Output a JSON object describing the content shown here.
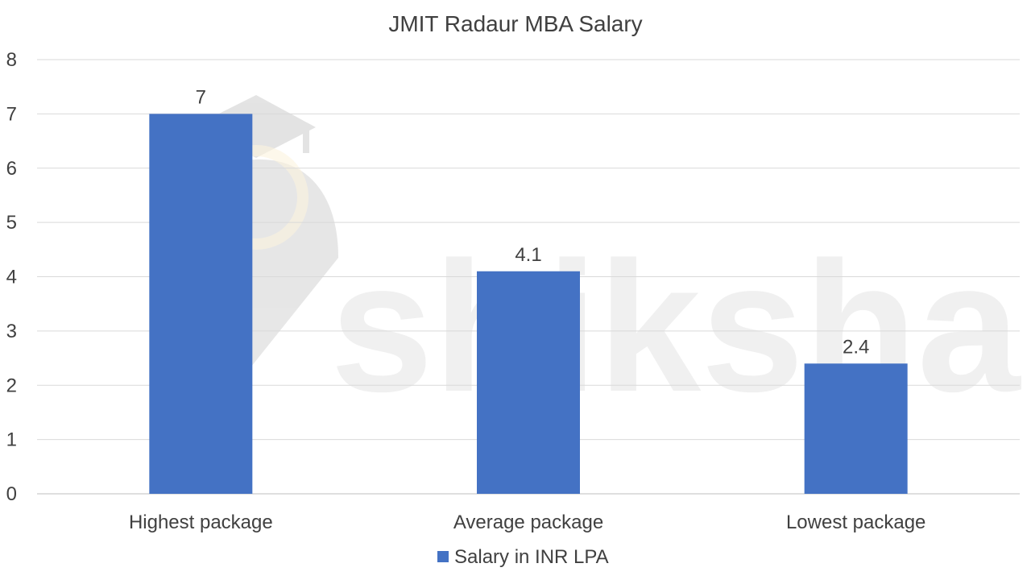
{
  "chart_data": {
    "type": "bar",
    "title": "JMIT Radaur MBA Salary",
    "categories": [
      "Highest package",
      "Average package",
      "Lowest package"
    ],
    "series": [
      {
        "name": "Salary in INR LPA",
        "values": [
          7,
          4.1,
          2.4
        ]
      }
    ],
    "data_labels": [
      "7",
      "4.1",
      "2.4"
    ],
    "ylim": [
      0,
      8
    ],
    "yticks": [
      0,
      1,
      2,
      3,
      4,
      5,
      6,
      7,
      8
    ],
    "xlabel": "",
    "ylabel": "",
    "grid": true,
    "legend_position": "bottom",
    "colors": {
      "bar": "#4472c4"
    }
  },
  "watermark": {
    "text": "shiksha"
  }
}
